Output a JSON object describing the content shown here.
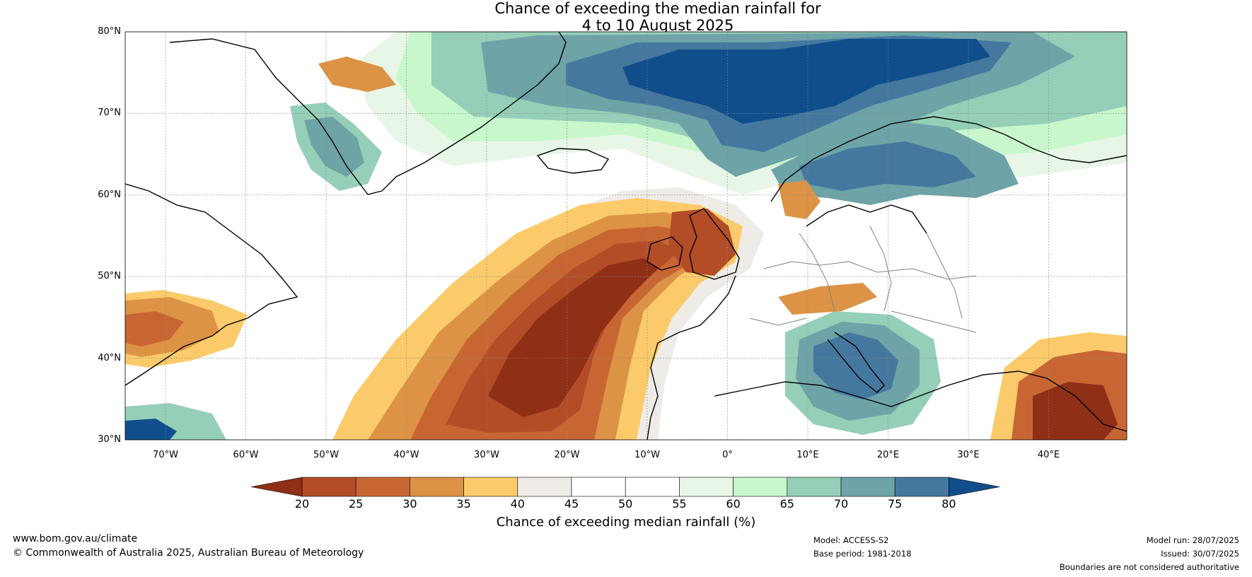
{
  "title": {
    "line1": "Chance of exceeding the median rainfall for",
    "line2": "4 to 10 August 2025"
  },
  "map": {
    "lat_labels": [
      "80°N",
      "70°N",
      "60°N",
      "50°N",
      "40°N",
      "30°N"
    ],
    "lon_labels": [
      "70°W",
      "60°W",
      "50°W",
      "40°W",
      "30°W",
      "20°W",
      "10°W",
      "0°",
      "10°E",
      "20°E",
      "30°E",
      "40°E"
    ],
    "colors": {
      "deep_brown": "#8e2f16",
      "brown": "#b24d28",
      "orange_brown": "#c86633",
      "orange": "#dd9345",
      "yellow": "#fbcb6b",
      "grey_white": "#efebe7",
      "white": "#ffffff",
      "pale_green": "#e7f6e7",
      "light_green": "#c8f7cb",
      "sea_green": "#95cfb7",
      "teal": "#6ea3a8",
      "blue_teal": "#45789e",
      "deep_blue": "#104e8b"
    }
  },
  "colorbar": {
    "ticks": [
      "20",
      "25",
      "30",
      "35",
      "40",
      "45",
      "50",
      "55",
      "60",
      "65",
      "70",
      "75",
      "80"
    ],
    "label": "Chance of exceeding median rainfall (%)",
    "colors": [
      "#b24d28",
      "#c86633",
      "#dd9345",
      "#fbcb6b",
      "#efebe7",
      "#ffffff",
      "#ffffff",
      "#e7f6e7",
      "#c8f7cb",
      "#95cfb7",
      "#6ea3a8",
      "#45789e"
    ],
    "low_color": "#8e2f16",
    "high_color": "#104e8b"
  },
  "footer": {
    "website": "www.bom.gov.au/climate",
    "copyright": "© Commonwealth of Australia 2025, Australian Bureau of Meteorology",
    "model": "Model: ACCESS-S2",
    "base_period": "Base period: 1981-2018",
    "model_run": "Model run: 28/07/2025",
    "issued": "Issued: 30/07/2025",
    "disclaimer": "Boundaries are not considered authoritative"
  }
}
